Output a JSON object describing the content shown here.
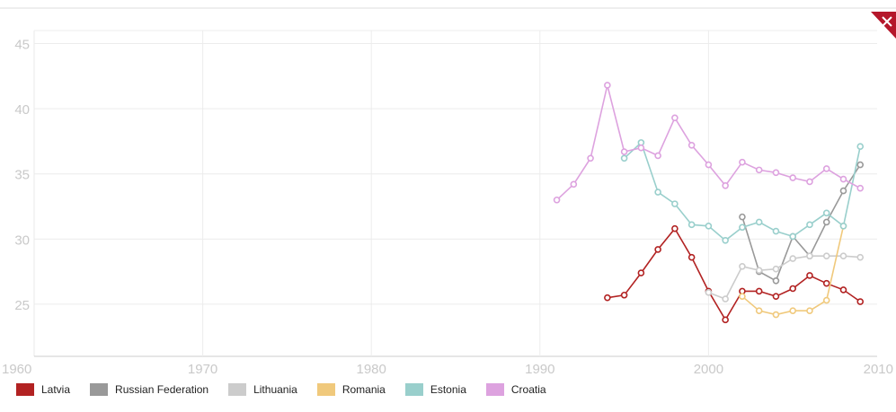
{
  "chart_data": {
    "type": "line",
    "xlim": [
      1960,
      2010
    ],
    "ylim": [
      21,
      46
    ],
    "x_ticks": [
      "1960",
      "1970",
      "1980",
      "1990",
      "2000",
      "2010"
    ],
    "y_ticks": [
      "25",
      "30",
      "35",
      "40",
      "45"
    ],
    "grid": true,
    "legend_position": "bottom",
    "series": [
      {
        "name": "Latvia",
        "color": "#b22222",
        "x": [
          1994,
          1995,
          1996,
          1997,
          1998,
          1999,
          2000,
          2001,
          2002,
          2003,
          2004,
          2005,
          2006,
          2007,
          2008,
          2009
        ],
        "y": [
          25.5,
          25.7,
          27.4,
          29.2,
          30.8,
          28.6,
          26.0,
          23.8,
          26.0,
          26.0,
          25.6,
          26.2,
          27.2,
          26.6,
          26.1,
          25.2
        ]
      },
      {
        "name": "Russian Federation",
        "color": "#999999",
        "x": [
          2002,
          2003,
          2004,
          2005,
          2006,
          2007,
          2008,
          2009
        ],
        "y": [
          31.7,
          27.5,
          26.8,
          30.2,
          28.7,
          31.3,
          33.7,
          35.7
        ]
      },
      {
        "name": "Lithuania",
        "color": "#cccccc",
        "x": [
          2000,
          2001,
          2002,
          2003,
          2004,
          2005,
          2006,
          2007,
          2008,
          2009
        ],
        "y": [
          25.9,
          25.4,
          27.9,
          27.6,
          27.7,
          28.5,
          28.7,
          28.7,
          28.7,
          28.6
        ]
      },
      {
        "name": "Romania",
        "color": "#f0c97c",
        "x": [
          2002,
          2003,
          2004,
          2005,
          2006,
          2007,
          2008
        ],
        "y": [
          25.6,
          24.5,
          24.2,
          24.5,
          24.5,
          25.3,
          31.0
        ]
      },
      {
        "name": "Estonia",
        "color": "#99cfcc",
        "x": [
          1995,
          1996,
          1997,
          1998,
          1999,
          2000,
          2001,
          2002,
          2003,
          2004,
          2005,
          2006,
          2007,
          2008,
          2009
        ],
        "y": [
          36.2,
          37.4,
          33.6,
          32.7,
          31.1,
          31.0,
          29.9,
          30.9,
          31.3,
          30.6,
          30.2,
          31.1,
          32.0,
          31.0,
          37.1
        ]
      },
      {
        "name": "Croatia",
        "color": "#dda2df",
        "x": [
          1991,
          1992,
          1993,
          1994,
          1995,
          1996,
          1997,
          1998,
          1999,
          2000,
          2001,
          2002,
          2003,
          2004,
          2005,
          2006,
          2007,
          2008,
          2009
        ],
        "y": [
          33.0,
          34.2,
          36.2,
          41.8,
          36.7,
          37.0,
          36.4,
          39.3,
          37.2,
          35.7,
          34.1,
          35.9,
          35.3,
          35.1,
          34.7,
          34.4,
          35.4,
          34.6,
          33.9
        ]
      }
    ]
  },
  "toolbar": {
    "icon": "scissors-icon"
  }
}
